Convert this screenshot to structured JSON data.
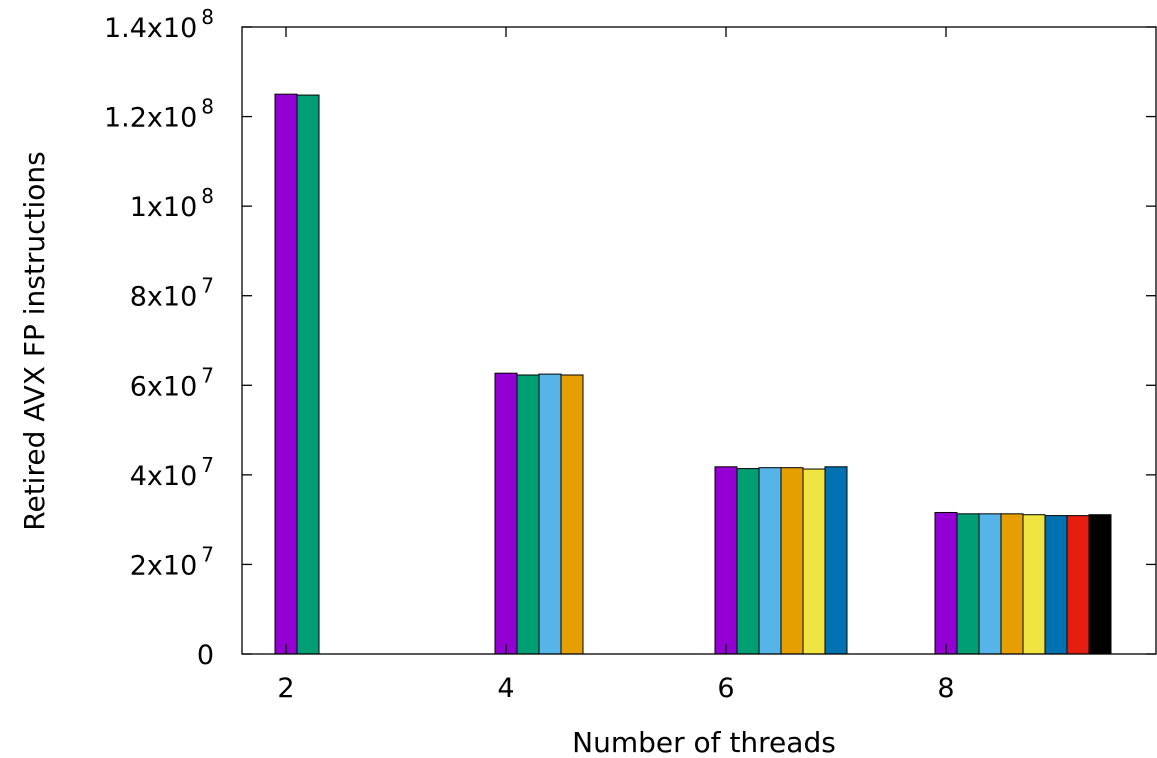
{
  "chart_data": {
    "type": "bar",
    "title": "",
    "xlabel": "Number of threads",
    "ylabel": "Retired AVX FP instructions",
    "x_tick_labels": [
      "2",
      "4",
      "6",
      "8"
    ],
    "y_tick_labels": [
      {
        "value": 0,
        "mantissa": "0",
        "exp": ""
      },
      {
        "value": 20000000,
        "mantissa": "2x10",
        "exp": "7"
      },
      {
        "value": 40000000,
        "mantissa": "4x10",
        "exp": "7"
      },
      {
        "value": 60000000,
        "mantissa": "6x10",
        "exp": "7"
      },
      {
        "value": 80000000,
        "mantissa": "8x10",
        "exp": "7"
      },
      {
        "value": 100000000,
        "mantissa": "1x10",
        "exp": "8"
      },
      {
        "value": 120000000,
        "mantissa": "1.2x10",
        "exp": "8"
      },
      {
        "value": 140000000,
        "mantissa": "1.4x10",
        "exp": "8"
      }
    ],
    "ylim": [
      0,
      140000000
    ],
    "grid": false,
    "legend": "none",
    "series_colors": [
      "#9400d3",
      "#009e73",
      "#56b4e9",
      "#e69f00",
      "#f0e442",
      "#0072b2",
      "#e51e10",
      "#000000"
    ],
    "groups": [
      {
        "category": "2",
        "values": [
          125000000,
          124800000
        ]
      },
      {
        "category": "4",
        "values": [
          62700000,
          62300000,
          62500000,
          62300000
        ]
      },
      {
        "category": "6",
        "values": [
          41800000,
          41400000,
          41600000,
          41600000,
          41300000,
          41800000
        ]
      },
      {
        "category": "8",
        "values": [
          31600000,
          31300000,
          31300000,
          31300000,
          31100000,
          30900000,
          30900000,
          31100000
        ]
      }
    ]
  }
}
